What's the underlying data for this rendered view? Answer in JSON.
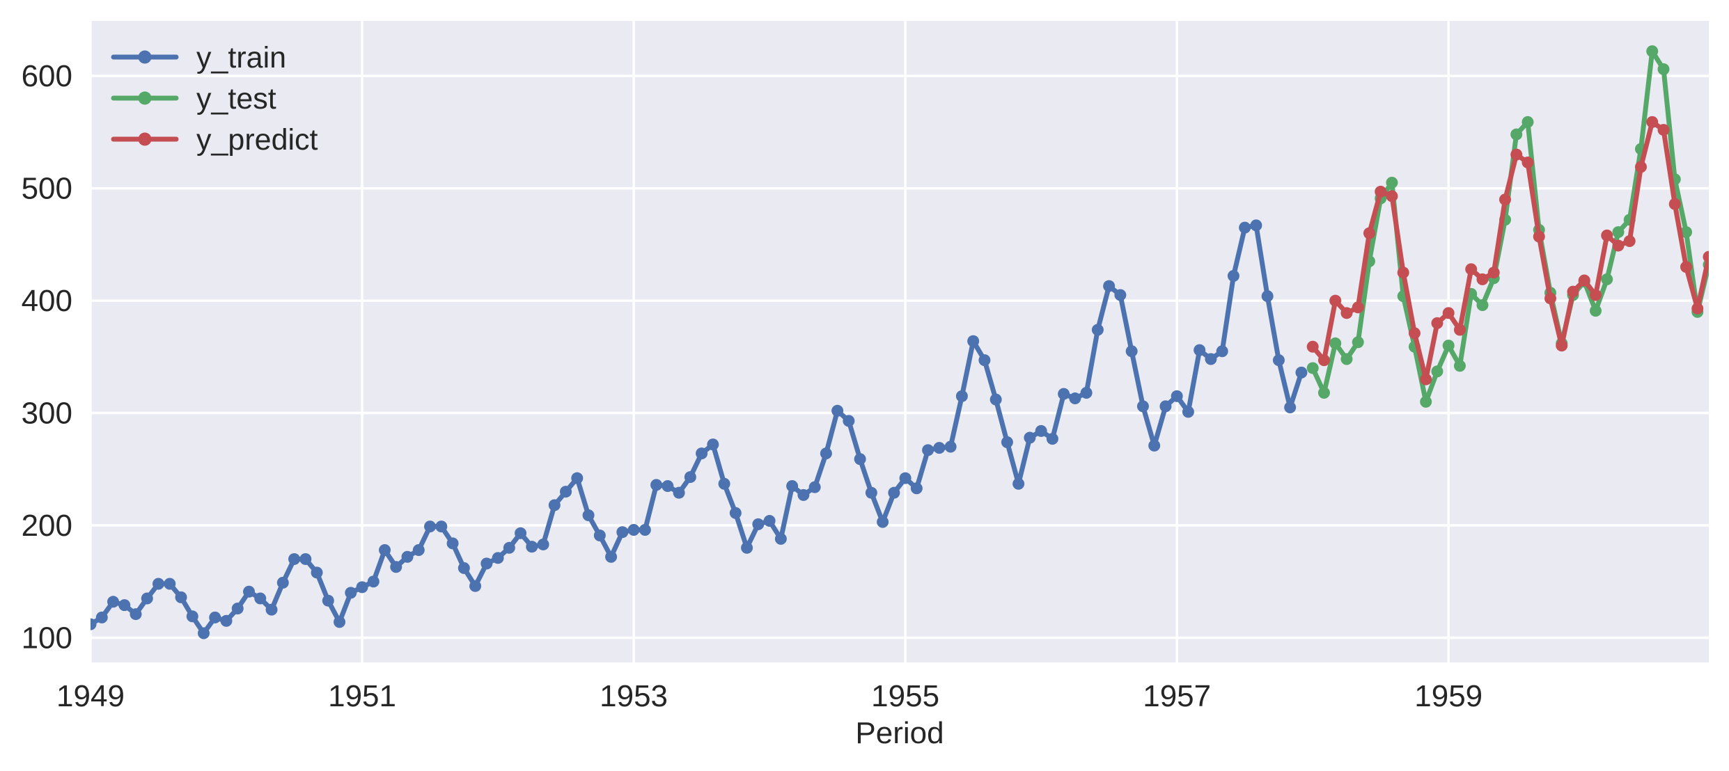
{
  "figure": {
    "background": "#ffffff",
    "plot_background": "#eaeaf2",
    "grid_color": "#ffffff",
    "text_color": "#262626"
  },
  "chart_data": {
    "type": "line",
    "title": "",
    "xlabel": "Period",
    "ylabel": "",
    "grid": true,
    "legend_position": "upper-left",
    "x_start_period": "1949-01",
    "x_end_period": "1960-12",
    "xlim_months": [
      0,
      143
    ],
    "ylim": [
      78,
      649
    ],
    "x_axis": {
      "tick_labels": [
        "1949",
        "1951",
        "1953",
        "1955",
        "1957",
        "1959"
      ],
      "tick_months": [
        0,
        24,
        48,
        72,
        96,
        120
      ]
    },
    "y_axis": {
      "ticks": [
        100,
        200,
        300,
        400,
        500,
        600
      ]
    },
    "series": [
      {
        "name": "y_train",
        "color": "#4c72b0",
        "start_month": 0,
        "values": [
          112,
          118,
          132,
          129,
          121,
          135,
          148,
          148,
          136,
          119,
          104,
          118,
          115,
          126,
          141,
          135,
          125,
          149,
          170,
          170,
          158,
          133,
          114,
          140,
          145,
          150,
          178,
          163,
          172,
          178,
          199,
          199,
          184,
          162,
          146,
          166,
          171,
          180,
          193,
          181,
          183,
          218,
          230,
          242,
          209,
          191,
          172,
          194,
          196,
          196,
          236,
          235,
          229,
          243,
          264,
          272,
          237,
          211,
          180,
          201,
          204,
          188,
          235,
          227,
          234,
          264,
          302,
          293,
          259,
          229,
          203,
          229,
          242,
          233,
          267,
          269,
          270,
          315,
          364,
          347,
          312,
          274,
          237,
          278,
          284,
          277,
          317,
          313,
          318,
          374,
          413,
          405,
          355,
          306,
          271,
          306,
          315,
          301,
          356,
          348,
          355,
          422,
          465,
          467,
          404,
          347,
          305,
          336
        ]
      },
      {
        "name": "y_test",
        "color": "#55a868",
        "start_month": 108,
        "values": [
          340,
          318,
          362,
          348,
          363,
          435,
          491,
          505,
          404,
          359,
          310,
          337,
          360,
          342,
          406,
          396,
          420,
          472,
          548,
          559,
          463,
          407,
          362,
          405,
          417,
          391,
          419,
          461,
          472,
          535,
          622,
          606,
          508,
          461,
          390,
          432
        ]
      },
      {
        "name": "y_predict",
        "color": "#c44e52",
        "start_month": 108,
        "values": [
          359,
          347,
          400,
          389,
          394,
          460,
          497,
          493,
          425,
          371,
          330,
          380,
          389,
          374,
          428,
          419,
          425,
          490,
          530,
          523,
          457,
          402,
          360,
          408,
          418,
          405,
          458,
          449,
          453,
          519,
          559,
          552,
          486,
          430,
          393,
          439
        ]
      }
    ],
    "legend_entries": [
      "y_train",
      "y_test",
      "y_predict"
    ]
  }
}
